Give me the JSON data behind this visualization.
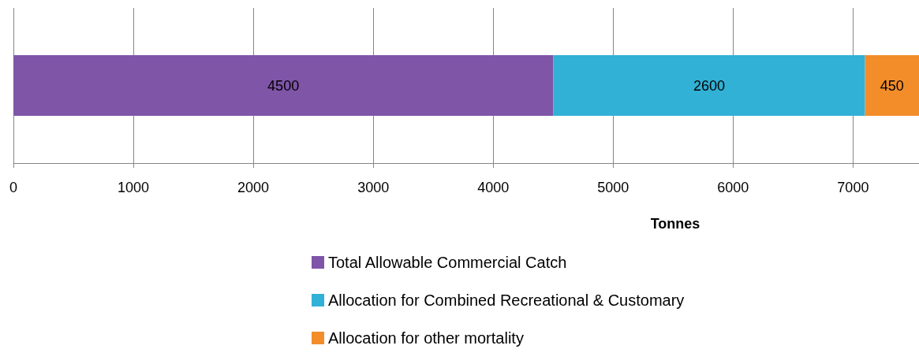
{
  "chart_data": {
    "type": "bar",
    "orientation": "horizontal",
    "stacked": true,
    "xlabel": "Tonnes",
    "categories": [
      null
    ],
    "series": [
      {
        "name": "Total Allowable Commercial Catch",
        "color": "#7f55a8",
        "values": [
          4500
        ]
      },
      {
        "name": "Allocation for Combined Recreational & Customary",
        "color": "#31b1d5",
        "values": [
          2600
        ]
      },
      {
        "name": "Allocation for other mortality",
        "color": "#f28d2a",
        "values": [
          450
        ]
      }
    ],
    "xlim": [
      0,
      7550
    ],
    "xticks": [
      0,
      1000,
      2000,
      3000,
      4000,
      5000,
      6000,
      7000
    ],
    "grid": "x",
    "legend": "bottom",
    "data_labels": true
  }
}
